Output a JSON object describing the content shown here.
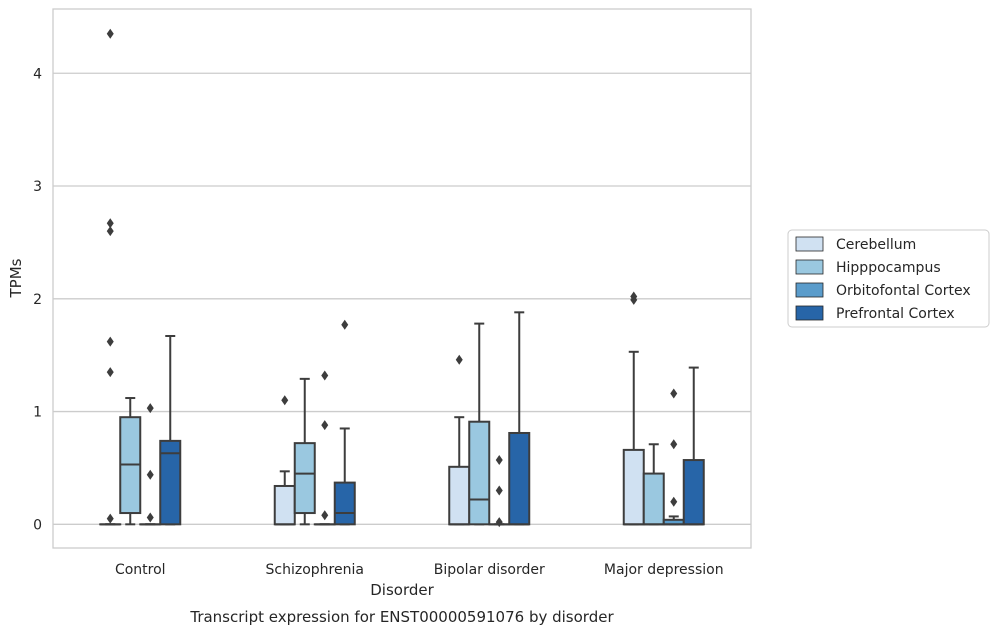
{
  "chart_data": {
    "type": "boxplot",
    "title": "Transcript expression for ENST00000591076 by disorder",
    "xlabel": "Disorder",
    "ylabel": "TPMs",
    "ylim": [
      -0.21,
      4.57
    ],
    "yticks": [
      0,
      1,
      2,
      3,
      4
    ],
    "grid": true,
    "legend_position": "center-right",
    "categories": [
      "Control",
      "Schizophrenia",
      "Bipolar disorder",
      "Major depression"
    ],
    "series": [
      {
        "name": "Cerebellum",
        "color": "#d0e1f2",
        "boxes": [
          {
            "whislo": 0,
            "q1": 0,
            "med": 0,
            "q3": 0,
            "whishi": 0,
            "fliers": [
              0.05,
              1.35,
              1.62,
              2.6,
              2.67,
              4.35
            ]
          },
          {
            "whislo": 0,
            "q1": 0,
            "med": 0,
            "q3": 0.34,
            "whishi": 0.47,
            "fliers": [
              1.1
            ]
          },
          {
            "whislo": 0,
            "q1": 0,
            "med": 0,
            "q3": 0.51,
            "whishi": 0.95,
            "fliers": [
              1.46
            ]
          },
          {
            "whislo": 0,
            "q1": 0,
            "med": 0,
            "q3": 0.66,
            "whishi": 1.53,
            "fliers": [
              1.99,
              2.02
            ]
          }
        ]
      },
      {
        "name": "Hipppocampus",
        "color": "#9ac8e0",
        "boxes": [
          {
            "whislo": 0,
            "q1": 0.1,
            "med": 0.53,
            "q3": 0.95,
            "whishi": 1.12,
            "fliers": []
          },
          {
            "whislo": 0,
            "q1": 0.1,
            "med": 0.45,
            "q3": 0.72,
            "whishi": 1.29,
            "fliers": []
          },
          {
            "whislo": 0,
            "q1": 0,
            "med": 0.22,
            "q3": 0.91,
            "whishi": 1.78,
            "fliers": []
          },
          {
            "whislo": 0,
            "q1": 0,
            "med": 0,
            "q3": 0.45,
            "whishi": 0.71,
            "fliers": []
          }
        ]
      },
      {
        "name": "Orbitofontal Cortex",
        "color": "#5a9ccb",
        "boxes": [
          {
            "whislo": 0,
            "q1": 0,
            "med": 0,
            "q3": 0,
            "whishi": 0,
            "fliers": [
              0.06,
              0.44,
              1.03
            ]
          },
          {
            "whislo": 0,
            "q1": 0,
            "med": 0,
            "q3": 0,
            "whishi": 0,
            "fliers": [
              0.08,
              0.88,
              1.32
            ]
          },
          {
            "whislo": 0,
            "q1": 0,
            "med": 0,
            "q3": 0,
            "whishi": 0,
            "fliers": [
              0.02,
              0.3,
              0.57
            ]
          },
          {
            "whislo": 0,
            "q1": 0,
            "med": 0,
            "q3": 0.04,
            "whishi": 0.07,
            "fliers": [
              0.2,
              0.71,
              1.16
            ]
          }
        ]
      },
      {
        "name": "Prefrontal Cortex",
        "color": "#2765a8",
        "boxes": [
          {
            "whislo": 0,
            "q1": 0,
            "med": 0.63,
            "q3": 0.74,
            "whishi": 1.67,
            "fliers": []
          },
          {
            "whislo": 0,
            "q1": 0,
            "med": 0.1,
            "q3": 0.37,
            "whishi": 0.85,
            "fliers": [
              1.77
            ]
          },
          {
            "whislo": 0,
            "q1": 0,
            "med": 0,
            "q3": 0.81,
            "whishi": 1.88,
            "fliers": []
          },
          {
            "whislo": 0,
            "q1": 0,
            "med": 0,
            "q3": 0.57,
            "whishi": 1.39,
            "fliers": []
          }
        ]
      }
    ]
  }
}
